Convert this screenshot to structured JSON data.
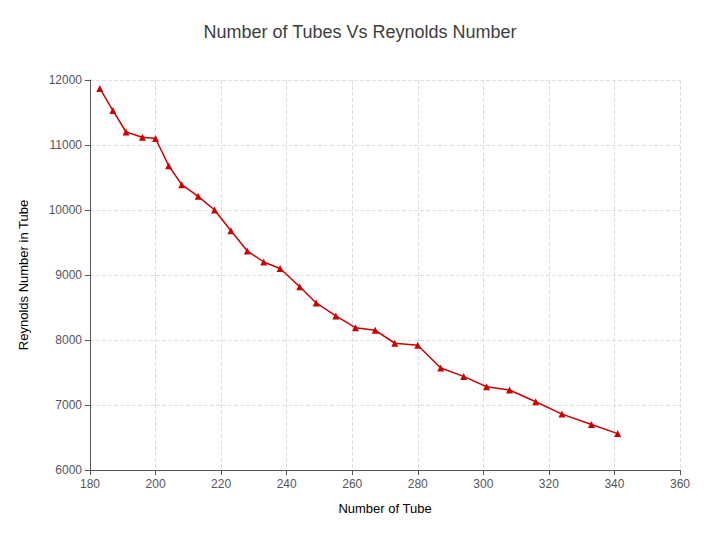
{
  "chart_data": {
    "type": "line",
    "title": "Number of Tubes Vs Reynolds Number",
    "xlabel": "Number of Tube",
    "ylabel": "Reynolds Number in Tube",
    "x": [
      183,
      187,
      191,
      196,
      200,
      204,
      208,
      213,
      218,
      223,
      228,
      233,
      238,
      244,
      249,
      255,
      261,
      267,
      273,
      280,
      287,
      294,
      301,
      308,
      316,
      324,
      333,
      341
    ],
    "values": [
      11870,
      11530,
      11200,
      11120,
      11100,
      10680,
      10390,
      10210,
      10000,
      9680,
      9370,
      9200,
      9100,
      8820,
      8570,
      8370,
      8190,
      8150,
      7950,
      7920,
      7570,
      7440,
      7280,
      7230,
      7050,
      6860,
      6700,
      6560
    ],
    "color": "#cc0000",
    "marker": "triangle",
    "xlim": [
      180,
      360
    ],
    "ylim": [
      6000,
      12000
    ],
    "xticks": [
      180,
      200,
      220,
      240,
      260,
      280,
      300,
      320,
      340,
      360
    ],
    "yticks": [
      6000,
      7000,
      8000,
      9000,
      10000,
      11000,
      12000
    ],
    "grid": true
  }
}
